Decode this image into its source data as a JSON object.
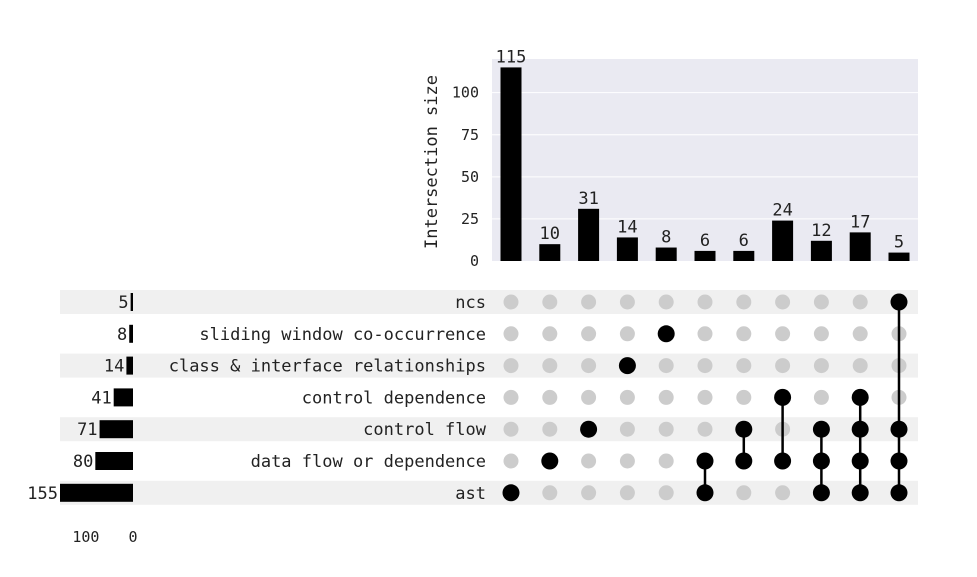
{
  "chart_data": {
    "type": "bar",
    "title": "",
    "ylabel": "Intersection size",
    "ylim": [
      0,
      120
    ],
    "y_ticks": [
      0,
      25,
      50,
      75,
      100
    ],
    "sets": [
      {
        "name": "ncs",
        "size": 5
      },
      {
        "name": "sliding window co-occurrence",
        "size": 8
      },
      {
        "name": "class & interface relationships",
        "size": 14
      },
      {
        "name": "control dependence",
        "size": 41
      },
      {
        "name": "control flow",
        "size": 71
      },
      {
        "name": "data flow or dependence",
        "size": 80
      },
      {
        "name": "ast",
        "size": 155
      }
    ],
    "set_size_axis": {
      "ticks": [
        100,
        0
      ],
      "max": 155
    },
    "intersections": [
      {
        "value": 115,
        "members": [
          "ast"
        ]
      },
      {
        "value": 10,
        "members": [
          "data flow or dependence"
        ]
      },
      {
        "value": 31,
        "members": [
          "control flow"
        ]
      },
      {
        "value": 14,
        "members": [
          "class & interface relationships"
        ]
      },
      {
        "value": 8,
        "members": [
          "sliding window co-occurrence"
        ]
      },
      {
        "value": 6,
        "members": [
          "data flow or dependence",
          "ast"
        ]
      },
      {
        "value": 6,
        "members": [
          "control flow",
          "data flow or dependence"
        ]
      },
      {
        "value": 24,
        "members": [
          "control dependence",
          "data flow or dependence"
        ]
      },
      {
        "value": 12,
        "members": [
          "control flow",
          "data flow or dependence",
          "ast"
        ]
      },
      {
        "value": 17,
        "members": [
          "control dependence",
          "control flow",
          "data flow or dependence",
          "ast"
        ]
      },
      {
        "value": 5,
        "members": [
          "ncs",
          "control flow",
          "data flow or dependence",
          "ast"
        ]
      }
    ],
    "grid": true,
    "colors": {
      "bar": "#000000",
      "dot_active": "#000000",
      "dot_inactive": "#cccccc",
      "plot_bg": "#eaeaf2",
      "row_stripe": "#f0f0f0",
      "grid": "#ffffff"
    }
  }
}
